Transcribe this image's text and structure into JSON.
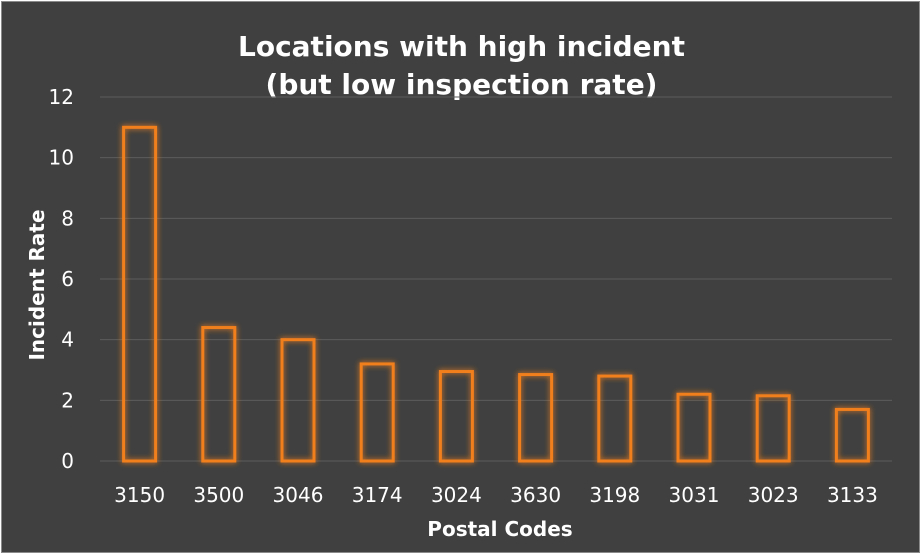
{
  "chart_data": {
    "type": "bar",
    "title_lines": [
      "Locations with high incident",
      "(but low inspection rate)"
    ],
    "xlabel": "Postal Codes",
    "ylabel": "Incident Rate",
    "categories": [
      "3150",
      "3500",
      "3046",
      "3174",
      "3024",
      "3630",
      "3198",
      "3031",
      "3023",
      "3133"
    ],
    "values": [
      11.0,
      4.4,
      4.0,
      3.2,
      2.95,
      2.85,
      2.8,
      2.2,
      2.15,
      1.7
    ],
    "ylim": [
      0,
      12
    ],
    "yticks": [
      "0",
      "2",
      "4",
      "6",
      "8",
      "10",
      "12"
    ],
    "grid": true,
    "colors": {
      "background": "#404040",
      "bar_outline": "#f07f1e",
      "bar_glow": "#c9601a",
      "grid": "#5c5c5c",
      "text": "#ffffff"
    }
  }
}
